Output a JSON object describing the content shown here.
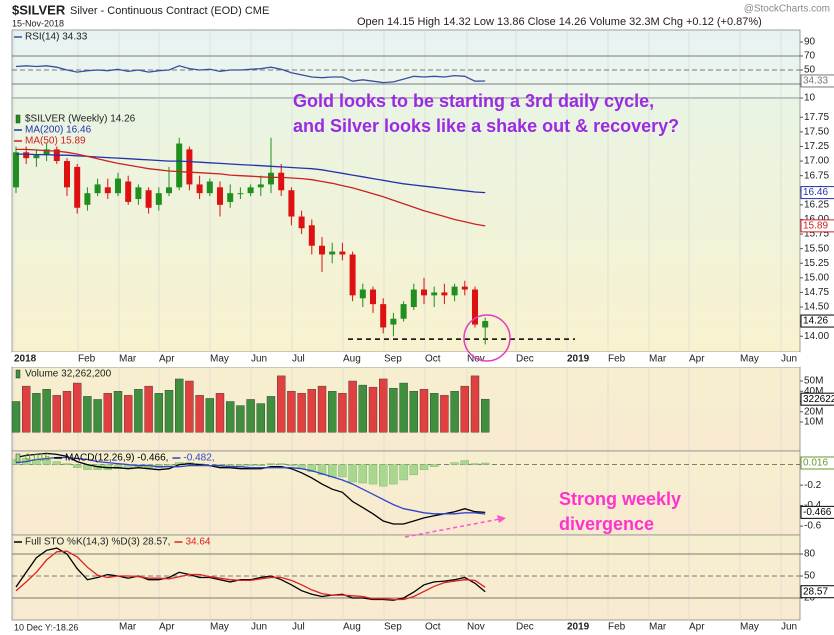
{
  "header": {
    "symbol": "$SILVER",
    "name": "Silver - Continuous Contract (EOD) CME",
    "date": "15-Nov-2018",
    "quote": "Open 14.15  High 14.32  Low 13.86  Close 14.26  Volume 32.3M  Chg +0.12 (+0.87%)",
    "brand": "@StockCharts.com",
    "cursor": "10 Dec Y:-18.26"
  },
  "annotations": {
    "note": [
      "Gold looks to be starting a 3rd daily cycle,",
      "and Silver looks like a shake out & recovery?"
    ],
    "divergence": [
      "Strong weekly",
      "divergence"
    ]
  },
  "xlabels": [
    "2018",
    "Feb",
    "Mar",
    "Apr",
    "May",
    "Jun",
    "Jul",
    "Aug",
    "Sep",
    "Oct",
    "Nov",
    "Dec",
    "2019",
    "Feb",
    "Mar",
    "Apr",
    "May",
    "Jun"
  ],
  "xlabels_bottom": [
    "Mar",
    "Apr",
    "May",
    "Jun",
    "Jul",
    "Aug",
    "Sep",
    "Oct",
    "Nov",
    "Dec",
    "2019",
    "Feb",
    "Mar",
    "Apr",
    "May",
    "Jun"
  ],
  "chart_data": [
    {
      "type": "line",
      "ylim": [
        10,
        107.1
      ],
      "yticks": [
        90,
        70,
        50,
        30,
        10
      ],
      "ref_lines": [
        70,
        50,
        30
      ],
      "tags": [
        34.33
      ],
      "tag_colors": [
        "#777777"
      ],
      "series": [
        {
          "type": "line",
          "name": "RSI(14) 34.33",
          "color": "#3a4fa0",
          "values": [
            55,
            56,
            55,
            56,
            54,
            50,
            47,
            49,
            50,
            49,
            51,
            48,
            50,
            47,
            49,
            50,
            56,
            52,
            50,
            51,
            48,
            50,
            50,
            51,
            52,
            54,
            51,
            46,
            43,
            40,
            39,
            40,
            40,
            34,
            36,
            34,
            32,
            33,
            37,
            41,
            40,
            41,
            40,
            42,
            41,
            34,
            34.33
          ]
        }
      ]
    },
    {
      "type": "candlestick",
      "ylim": [
        13.73,
        18.08
      ],
      "yticks": [
        {
          "value": 14,
          "label": "14.00"
        },
        14.25,
        {
          "value": 14.5,
          "label": "14.50"
        },
        14.75,
        {
          "value": 15,
          "label": "15.00"
        },
        15.25,
        {
          "value": 15.5,
          "label": "15.50"
        },
        15.75,
        {
          "value": 16,
          "label": "16.00"
        },
        16.25,
        {
          "value": 16.5,
          "label": "16.50"
        },
        16.75,
        {
          "value": 17,
          "label": "17.00"
        },
        17.25,
        {
          "value": 17.5,
          "label": "17.50"
        },
        17.75
      ],
      "tags": [
        16.46,
        15.89,
        14.26
      ],
      "tag_colors": [
        "#2233aa",
        "#cc2222",
        "#000000"
      ],
      "hlines": [
        13.95
      ],
      "series": [
        {
          "type": "candlestick",
          "name": "$SILVER (Weekly) 14.26",
          "up_color": "#1f8f1f",
          "down_color": "#dd1111",
          "open": [
            16.55,
            17.15,
            17.05,
            17.1,
            17.2,
            17,
            16.9,
            16.25,
            16.45,
            16.55,
            16.45,
            16.65,
            16.35,
            16.5,
            16.25,
            16.45,
            16.55,
            17.2,
            16.6,
            16.45,
            16.55,
            16.3,
            16.45,
            16.45,
            16.55,
            16.6,
            16.8,
            16.5,
            16.05,
            15.9,
            15.55,
            15.4,
            15.45,
            15.4,
            14.65,
            14.8,
            14.55,
            14.2,
            14.3,
            14.5,
            14.8,
            14.7,
            14.75,
            14.7,
            14.85,
            14.8,
            14.15
          ],
          "high": [
            17.25,
            17.25,
            17.2,
            17.3,
            17.25,
            17.05,
            16.95,
            16.55,
            16.7,
            16.7,
            16.8,
            16.75,
            16.6,
            16.55,
            16.55,
            16.9,
            17.4,
            17.25,
            16.75,
            16.7,
            16.65,
            16.6,
            16.55,
            16.6,
            16.75,
            17.4,
            16.95,
            16.55,
            16.15,
            16,
            15.7,
            15.6,
            15.6,
            15.45,
            14.9,
            14.85,
            14.65,
            14.4,
            14.6,
            14.9,
            15,
            14.85,
            14.9,
            14.9,
            14.95,
            14.85,
            14.32
          ],
          "low": [
            16.45,
            16.95,
            16.9,
            17,
            16.95,
            16.4,
            16.1,
            16.15,
            16.4,
            16.35,
            16.4,
            16.25,
            16.25,
            16.1,
            16.15,
            16.4,
            16.5,
            16.5,
            16.35,
            16.4,
            16.05,
            16.2,
            16.35,
            16.4,
            16.4,
            16.45,
            16.4,
            15.9,
            15.75,
            15.4,
            15.1,
            15.25,
            15.3,
            14.6,
            14.5,
            14.4,
            14.05,
            14,
            14.25,
            14.45,
            14.55,
            14.5,
            14.55,
            14.6,
            14.7,
            14.15,
            13.86
          ],
          "close": [
            17.15,
            17.05,
            17.1,
            17.2,
            17,
            16.55,
            16.2,
            16.45,
            16.6,
            16.45,
            16.7,
            16.3,
            16.55,
            16.2,
            16.45,
            16.55,
            17.3,
            16.6,
            16.45,
            16.65,
            16.25,
            16.45,
            16.45,
            16.55,
            16.6,
            16.8,
            16.5,
            16.05,
            15.85,
            15.55,
            15.4,
            15.45,
            15.4,
            14.7,
            14.8,
            14.55,
            14.15,
            14.3,
            14.55,
            14.8,
            14.7,
            14.75,
            14.7,
            14.85,
            14.8,
            14.2,
            14.26
          ]
        },
        {
          "type": "line",
          "name": "MA(200) 16.46",
          "color": "#2233aa",
          "values": [
            17.12,
            17.12,
            17.11,
            17.11,
            17.1,
            17.1,
            17.09,
            17.08,
            17.07,
            17.06,
            17.05,
            17.04,
            17.03,
            17.02,
            17.01,
            17,
            17,
            16.99,
            16.98,
            16.97,
            16.96,
            16.95,
            16.94,
            16.93,
            16.92,
            16.91,
            16.9,
            16.89,
            16.88,
            16.87,
            16.85,
            16.82,
            16.79,
            16.76,
            16.73,
            16.7,
            16.67,
            16.64,
            16.61,
            16.59,
            16.57,
            16.55,
            16.53,
            16.51,
            16.49,
            16.47,
            16.46
          ]
        },
        {
          "type": "line",
          "name": "MA(50) 15.89",
          "color": "#cc2222",
          "values": [
            17.2,
            17.2,
            17.19,
            17.18,
            17.17,
            17.15,
            17.12,
            17.08,
            17.04,
            17,
            16.96,
            16.93,
            16.9,
            16.87,
            16.85,
            16.83,
            16.82,
            16.81,
            16.8,
            16.79,
            16.78,
            16.76,
            16.75,
            16.74,
            16.73,
            16.72,
            16.72,
            16.71,
            16.7,
            16.68,
            16.65,
            16.62,
            16.58,
            16.54,
            16.49,
            16.44,
            16.39,
            16.33,
            16.27,
            16.21,
            16.15,
            16.1,
            16.05,
            16,
            15.96,
            15.92,
            15.89
          ]
        }
      ]
    },
    {
      "type": "bar",
      "ylim": [
        -18290000,
        63660000
      ],
      "yticks": [
        {
          "value": 50000000,
          "label": "50M"
        },
        {
          "value": 40000000,
          "label": "40M"
        },
        {
          "value": 30000000,
          "label": "30M"
        },
        {
          "value": 20000000,
          "label": "20M"
        },
        {
          "value": 10000000,
          "label": "10M"
        }
      ],
      "tags": [
        {
          "value": 32262200,
          "label": "32262200"
        }
      ],
      "tag_colors": [
        "#000000"
      ],
      "series": [
        {
          "type": "bar",
          "name": "Volume 32,262,200",
          "up_color": "#3f8f3f",
          "down_color": "#e04040",
          "values": [
            30000000,
            45000000,
            38000000,
            42000000,
            36000000,
            40000000,
            48000000,
            35000000,
            32000000,
            38000000,
            40000000,
            36000000,
            42000000,
            45000000,
            38000000,
            41000000,
            52000000,
            50000000,
            36000000,
            33000000,
            38000000,
            30000000,
            26000000,
            32000000,
            28000000,
            35000000,
            55000000,
            40000000,
            38000000,
            42000000,
            45000000,
            40000000,
            38000000,
            50000000,
            46000000,
            44000000,
            52000000,
            43000000,
            48000000,
            40000000,
            42000000,
            38000000,
            36000000,
            40000000,
            45000000,
            55000000,
            32262200
          ]
        }
      ]
    },
    {
      "type": "line",
      "ylim": [
        -0.687,
        0.133
      ],
      "yticks": [
        -0.2,
        -0.4,
        -0.6
      ],
      "ref_lines": [
        0
      ],
      "tags": [
        0.016,
        -0.466
      ],
      "tag_colors": [
        "#669933",
        "#000000"
      ],
      "series": [
        {
          "type": "histogram",
          "name": "0.016",
          "color": "#a8d890",
          "values": [
            0.05,
            0.06,
            0.05,
            0.05,
            0.03,
            0.01,
            -0.03,
            -0.05,
            -0.05,
            -0.05,
            -0.04,
            -0.04,
            -0.02,
            -0.03,
            -0.03,
            -0.02,
            0.02,
            0.02,
            0.01,
            0,
            -0.02,
            -0.01,
            -0.02,
            -0.01,
            -0.01,
            0.01,
            0.01,
            -0.01,
            -0.04,
            -0.07,
            -0.1,
            -0.12,
            -0.12,
            -0.17,
            -0.18,
            -0.19,
            -0.21,
            -0.19,
            -0.15,
            -0.1,
            -0.05,
            -0.02,
            0,
            0.02,
            0.04,
            0.01,
            0.016
          ]
        },
        {
          "type": "line",
          "name": "MACD(12,26,9) -0.466,",
          "color": "#000000",
          "values": [
            0.07,
            0.09,
            0.1,
            0.11,
            0.1,
            0.08,
            0.03,
            0,
            -0.02,
            -0.03,
            -0.03,
            -0.04,
            -0.03,
            -0.04,
            -0.05,
            -0.04,
            0,
            0.01,
            0,
            -0.01,
            -0.03,
            -0.03,
            -0.04,
            -0.04,
            -0.04,
            -0.02,
            -0.02,
            -0.04,
            -0.08,
            -0.13,
            -0.19,
            -0.24,
            -0.27,
            -0.36,
            -0.42,
            -0.48,
            -0.55,
            -0.58,
            -0.58,
            -0.55,
            -0.52,
            -0.5,
            -0.48,
            -0.46,
            -0.43,
            -0.46,
            -0.466
          ]
        },
        {
          "type": "line",
          "name": "-0.482,",
          "color": "#3344cc",
          "values": [
            0.02,
            0.03,
            0.05,
            0.06,
            0.07,
            0.07,
            0.06,
            0.05,
            0.03,
            0.02,
            0.01,
            0,
            -0.01,
            -0.01,
            -0.02,
            -0.02,
            -0.02,
            -0.01,
            -0.01,
            -0.01,
            -0.01,
            -0.02,
            -0.02,
            -0.03,
            -0.03,
            -0.03,
            -0.03,
            -0.03,
            -0.04,
            -0.06,
            -0.09,
            -0.12,
            -0.15,
            -0.19,
            -0.24,
            -0.29,
            -0.34,
            -0.39,
            -0.43,
            -0.45,
            -0.47,
            -0.48,
            -0.48,
            -0.48,
            -0.47,
            -0.47,
            -0.482
          ]
        }
      ]
    },
    {
      "type": "line",
      "ylim": [
        -10,
        105.9
      ],
      "yticks": [
        80,
        50,
        20
      ],
      "ref_lines": [
        80,
        50,
        20
      ],
      "tags": [
        28.57
      ],
      "tag_colors": [
        "#000000"
      ],
      "series": [
        {
          "type": "line",
          "name": "Full STO %K(14,3) %D(3) 28.57,",
          "color": "#000000",
          "values": [
            35,
            55,
            75,
            85,
            88,
            80,
            60,
            45,
            48,
            52,
            50,
            47,
            50,
            45,
            45,
            48,
            55,
            52,
            48,
            48,
            45,
            42,
            45,
            45,
            48,
            50,
            45,
            38,
            30,
            25,
            22,
            24,
            25,
            20,
            20,
            18,
            18,
            17,
            20,
            28,
            38,
            42,
            43,
            45,
            48,
            40,
            28.57
          ]
        },
        {
          "type": "line",
          "name": "34.64",
          "color": "#dd2222",
          "values": [
            30,
            42,
            55,
            72,
            83,
            84,
            76,
            62,
            51,
            48,
            50,
            50,
            49,
            47,
            47,
            46,
            49,
            52,
            52,
            49,
            47,
            45,
            44,
            44,
            46,
            48,
            48,
            44,
            38,
            31,
            26,
            24,
            24,
            23,
            22,
            19,
            19,
            18,
            18,
            22,
            29,
            36,
            41,
            43,
            45,
            44,
            34.64
          ]
        }
      ]
    }
  ]
}
